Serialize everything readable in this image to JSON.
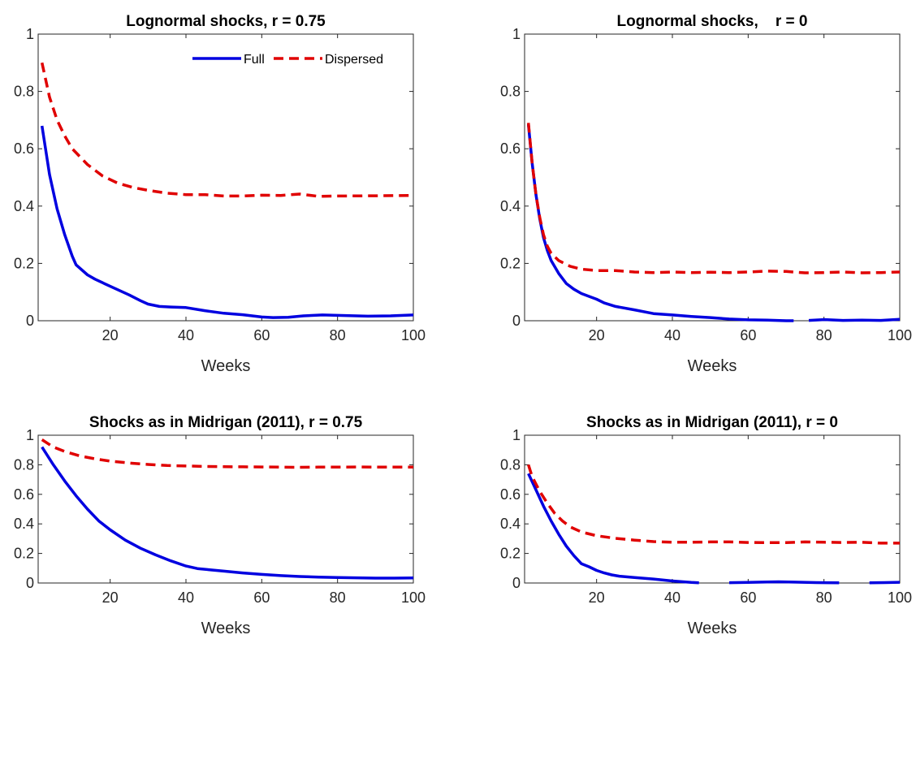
{
  "legend": {
    "full": "Full",
    "dispersed": "Dispersed"
  },
  "colors": {
    "full": "#0000e0",
    "dispersed": "#e00000",
    "axis": "#262626"
  },
  "chart_data": [
    {
      "type": "line",
      "title": "Lognormal shocks, r = 0.75",
      "xlabel": "Weeks",
      "ylabel": "",
      "xlim": [
        1,
        100
      ],
      "ylim": [
        0,
        1
      ],
      "xticks": [
        20,
        40,
        60,
        80,
        100
      ],
      "yticks": [
        0,
        0.2,
        0.4,
        0.6,
        0.8,
        1
      ],
      "legend": "top-right",
      "grid": false,
      "series": [
        {
          "name": "Full",
          "style": "solid",
          "points": [
            [
              2,
              0.68
            ],
            [
              4,
              0.51
            ],
            [
              6,
              0.39
            ],
            [
              8,
              0.3
            ],
            [
              10,
              0.225
            ],
            [
              11,
              0.195
            ],
            [
              14,
              0.16
            ],
            [
              16,
              0.145
            ],
            [
              20,
              0.12
            ],
            [
              25,
              0.09
            ],
            [
              28,
              0.07
            ],
            [
              30,
              0.058
            ],
            [
              33,
              0.05
            ],
            [
              36,
              0.048
            ],
            [
              40,
              0.046
            ],
            [
              45,
              0.035
            ],
            [
              50,
              0.026
            ],
            [
              55,
              0.021
            ],
            [
              60,
              0.013
            ],
            [
              63,
              0.011
            ],
            [
              67,
              0.012
            ],
            [
              71,
              0.017
            ],
            [
              76,
              0.02
            ],
            [
              82,
              0.018
            ],
            [
              88,
              0.016
            ],
            [
              94,
              0.017
            ],
            [
              100,
              0.02
            ]
          ]
        },
        {
          "name": "Dispersed",
          "style": "dashed",
          "points": [
            [
              2,
              0.9
            ],
            [
              4,
              0.78
            ],
            [
              6,
              0.7
            ],
            [
              8,
              0.645
            ],
            [
              10,
              0.6
            ],
            [
              14,
              0.545
            ],
            [
              18,
              0.505
            ],
            [
              22,
              0.48
            ],
            [
              26,
              0.465
            ],
            [
              30,
              0.455
            ],
            [
              35,
              0.445
            ],
            [
              40,
              0.44
            ],
            [
              45,
              0.44
            ],
            [
              50,
              0.435
            ],
            [
              55,
              0.435
            ],
            [
              60,
              0.438
            ],
            [
              65,
              0.437
            ],
            [
              70,
              0.442
            ],
            [
              75,
              0.434
            ],
            [
              80,
              0.435
            ],
            [
              90,
              0.436
            ],
            [
              100,
              0.437
            ]
          ]
        }
      ]
    },
    {
      "type": "line",
      "title": "Lognormal shocks,    r = 0",
      "xlabel": "Weeks",
      "ylabel": "",
      "xlim": [
        1,
        100
      ],
      "ylim": [
        0,
        1
      ],
      "xticks": [
        20,
        40,
        60,
        80,
        100
      ],
      "yticks": [
        0,
        0.2,
        0.4,
        0.6,
        0.8,
        1
      ],
      "grid": false,
      "series": [
        {
          "name": "Full",
          "style": "solid",
          "points": [
            [
              2,
              0.685
            ],
            [
              3,
              0.55
            ],
            [
              4,
              0.44
            ],
            [
              5,
              0.355
            ],
            [
              6,
              0.29
            ],
            [
              7,
              0.245
            ],
            [
              8,
              0.21
            ],
            [
              10,
              0.165
            ],
            [
              12,
              0.13
            ],
            [
              14,
              0.11
            ],
            [
              16,
              0.095
            ],
            [
              18,
              0.085
            ],
            [
              20,
              0.075
            ],
            [
              22,
              0.062
            ],
            [
              25,
              0.05
            ],
            [
              30,
              0.038
            ],
            [
              35,
              0.025
            ],
            [
              40,
              0.02
            ],
            [
              45,
              0.015
            ],
            [
              50,
              0.011
            ],
            [
              55,
              0.006
            ],
            [
              60,
              0.003
            ],
            [
              65,
              0.002
            ],
            [
              70,
              0.0
            ],
            [
              72,
              0.0
            ],
            null,
            [
              76,
              0.001
            ],
            [
              80,
              0.004
            ],
            [
              85,
              0.001
            ],
            [
              90,
              0.002
            ],
            [
              95,
              0.001
            ],
            [
              100,
              0.005
            ]
          ]
        },
        {
          "name": "Dispersed",
          "style": "dashed",
          "points": [
            [
              2,
              0.69
            ],
            [
              3,
              0.55
            ],
            [
              4,
              0.44
            ],
            [
              5,
              0.36
            ],
            [
              6,
              0.3
            ],
            [
              7,
              0.26
            ],
            [
              8,
              0.235
            ],
            [
              10,
              0.21
            ],
            [
              13,
              0.19
            ],
            [
              16,
              0.18
            ],
            [
              20,
              0.175
            ],
            [
              25,
              0.175
            ],
            [
              30,
              0.17
            ],
            [
              35,
              0.168
            ],
            [
              40,
              0.17
            ],
            [
              45,
              0.168
            ],
            [
              50,
              0.169
            ],
            [
              55,
              0.168
            ],
            [
              60,
              0.17
            ],
            [
              65,
              0.173
            ],
            [
              70,
              0.172
            ],
            [
              75,
              0.167
            ],
            [
              80,
              0.168
            ],
            [
              85,
              0.17
            ],
            [
              90,
              0.167
            ],
            [
              95,
              0.168
            ],
            [
              100,
              0.17
            ]
          ]
        }
      ]
    },
    {
      "type": "line",
      "title": "Shocks as in Midrigan (2011), r = 0.75",
      "xlabel": "Weeks",
      "ylabel": "",
      "xlim": [
        1,
        100
      ],
      "ylim": [
        0,
        1
      ],
      "xticks": [
        20,
        40,
        60,
        80,
        100
      ],
      "yticks": [
        0,
        0.2,
        0.4,
        0.6,
        0.8,
        1
      ],
      "grid": false,
      "series": [
        {
          "name": "Full",
          "style": "solid",
          "points": [
            [
              2,
              0.92
            ],
            [
              5,
              0.8
            ],
            [
              8,
              0.69
            ],
            [
              11,
              0.59
            ],
            [
              14,
              0.5
            ],
            [
              17,
              0.42
            ],
            [
              20,
              0.36
            ],
            [
              24,
              0.29
            ],
            [
              28,
              0.235
            ],
            [
              32,
              0.19
            ],
            [
              36,
              0.15
            ],
            [
              40,
              0.115
            ],
            [
              43,
              0.098
            ],
            [
              46,
              0.09
            ],
            [
              50,
              0.08
            ],
            [
              55,
              0.068
            ],
            [
              60,
              0.058
            ],
            [
              65,
              0.05
            ],
            [
              70,
              0.044
            ],
            [
              75,
              0.04
            ],
            [
              80,
              0.037
            ],
            [
              85,
              0.035
            ],
            [
              90,
              0.033
            ],
            [
              95,
              0.033
            ],
            [
              100,
              0.034
            ]
          ]
        },
        {
          "name": "Dispersed",
          "style": "dashed",
          "points": [
            [
              2,
              0.97
            ],
            [
              5,
              0.92
            ],
            [
              8,
              0.89
            ],
            [
              12,
              0.86
            ],
            [
              16,
              0.84
            ],
            [
              20,
              0.825
            ],
            [
              25,
              0.812
            ],
            [
              30,
              0.802
            ],
            [
              35,
              0.795
            ],
            [
              40,
              0.792
            ],
            [
              45,
              0.789
            ],
            [
              50,
              0.787
            ],
            [
              55,
              0.786
            ],
            [
              60,
              0.785
            ],
            [
              65,
              0.784
            ],
            [
              70,
              0.783
            ],
            [
              75,
              0.784
            ],
            [
              80,
              0.784
            ],
            [
              85,
              0.785
            ],
            [
              90,
              0.784
            ],
            [
              95,
              0.784
            ],
            [
              100,
              0.784
            ]
          ]
        }
      ]
    },
    {
      "type": "line",
      "title": "Shocks as in Midrigan (2011), r = 0",
      "xlabel": "Weeks",
      "ylabel": "",
      "xlim": [
        1,
        100
      ],
      "ylim": [
        0,
        1
      ],
      "xticks": [
        20,
        40,
        60,
        80,
        100
      ],
      "yticks": [
        0,
        0.2,
        0.4,
        0.6,
        0.8,
        1
      ],
      "grid": false,
      "series": [
        {
          "name": "Full",
          "style": "solid",
          "points": [
            [
              2,
              0.74
            ],
            [
              4,
              0.63
            ],
            [
              6,
              0.52
            ],
            [
              8,
              0.42
            ],
            [
              10,
              0.33
            ],
            [
              12,
              0.25
            ],
            [
              14,
              0.185
            ],
            [
              16,
              0.13
            ],
            [
              18,
              0.11
            ],
            [
              20,
              0.085
            ],
            [
              22,
              0.068
            ],
            [
              24,
              0.055
            ],
            [
              26,
              0.046
            ],
            [
              30,
              0.037
            ],
            [
              35,
              0.027
            ],
            [
              40,
              0.014
            ],
            [
              45,
              0.004
            ],
            [
              47,
              0.001
            ],
            null,
            [
              55,
              0.002
            ],
            [
              60,
              0.004
            ],
            [
              65,
              0.007
            ],
            [
              68,
              0.008
            ],
            [
              72,
              0.006
            ],
            [
              78,
              0.003
            ],
            [
              84,
              0.001
            ],
            null,
            [
              92,
              0.001
            ],
            [
              96,
              0.003
            ],
            [
              100,
              0.005
            ]
          ]
        },
        {
          "name": "Dispersed",
          "style": "dashed",
          "points": [
            [
              2,
              0.8
            ],
            [
              3,
              0.72
            ],
            [
              5,
              0.62
            ],
            [
              7,
              0.54
            ],
            [
              9,
              0.47
            ],
            [
              11,
              0.42
            ],
            [
              13,
              0.38
            ],
            [
              16,
              0.345
            ],
            [
              20,
              0.32
            ],
            [
              25,
              0.302
            ],
            [
              30,
              0.29
            ],
            [
              35,
              0.28
            ],
            [
              40,
              0.276
            ],
            [
              45,
              0.276
            ],
            [
              50,
              0.278
            ],
            [
              55,
              0.278
            ],
            [
              60,
              0.274
            ],
            [
              65,
              0.273
            ],
            [
              70,
              0.273
            ],
            [
              75,
              0.278
            ],
            [
              80,
              0.276
            ],
            [
              85,
              0.274
            ],
            [
              90,
              0.276
            ],
            [
              95,
              0.27
            ],
            [
              100,
              0.27
            ]
          ]
        }
      ]
    }
  ]
}
